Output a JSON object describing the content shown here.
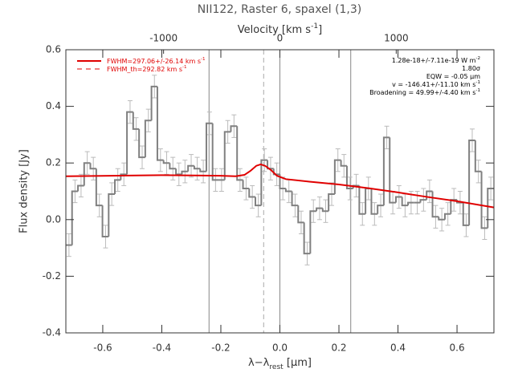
{
  "chart_data": {
    "type": "histogram",
    "title": "NII122, Raster 6, spaxel (1,3)",
    "xlabel": {
      "text": "λ−λ",
      "sub": "rest",
      "unit": " [μm]"
    },
    "ylabel": "Flux density [Jy]",
    "x2label": {
      "text": "Velocity [km s",
      "sup": "-1",
      "end": "]"
    },
    "xlim": [
      -0.725,
      0.725
    ],
    "xticks": [
      -0.6,
      -0.4,
      -0.2,
      {
        "value": 0,
        "label": "0.0"
      },
      0.2,
      0.4,
      0.6
    ],
    "ylim": [
      -0.4,
      0.6
    ],
    "yticks": [
      -0.4,
      -0.2,
      {
        "value": 0,
        "label": "0.0"
      },
      0.2,
      0.4,
      0.6
    ],
    "x2lim": [
      -1840,
      1840
    ],
    "x2ticks": [
      -1000,
      0,
      1000
    ],
    "bins": [
      -0.725,
      -0.704,
      -0.684,
      -0.663,
      -0.642,
      -0.622,
      -0.601,
      -0.58,
      -0.559,
      -0.539,
      -0.518,
      -0.497,
      -0.477,
      -0.456,
      -0.435,
      -0.415,
      -0.394,
      -0.373,
      -0.352,
      -0.332,
      -0.311,
      -0.29,
      -0.27,
      -0.249,
      -0.228,
      -0.208,
      -0.187,
      -0.166,
      -0.145,
      -0.125,
      -0.104,
      -0.083,
      -0.063,
      -0.042,
      -0.021,
      0.0,
      0.02,
      0.041,
      0.062,
      0.082,
      0.103,
      0.124,
      0.145,
      0.165,
      0.186,
      0.207,
      0.227,
      0.248,
      0.269,
      0.29,
      0.31,
      0.331,
      0.352,
      0.372,
      0.393,
      0.414,
      0.434,
      0.455,
      0.476,
      0.497,
      0.517,
      0.538,
      0.559,
      0.579,
      0.6,
      0.621,
      0.641,
      0.662,
      0.683,
      0.704,
      0.725
    ],
    "values": [
      -0.09,
      0.1,
      0.12,
      0.2,
      0.18,
      0.05,
      -0.06,
      0.09,
      0.14,
      0.16,
      0.38,
      0.32,
      0.22,
      0.35,
      0.47,
      0.21,
      0.2,
      0.18,
      0.16,
      0.17,
      0.19,
      0.18,
      0.17,
      0.34,
      0.14,
      0.14,
      0.31,
      0.33,
      0.14,
      0.11,
      0.08,
      0.05,
      0.21,
      0.18,
      0.16,
      0.11,
      0.1,
      0.05,
      -0.01,
      -0.12,
      0.03,
      0.04,
      0.03,
      0.09,
      0.21,
      0.19,
      0.11,
      0.12,
      0.02,
      0.11,
      0.02,
      0.05,
      0.29,
      0.06,
      0.08,
      0.05,
      0.06,
      0.06,
      0.07,
      0.1,
      0.01,
      0.0,
      0.02,
      0.07,
      0.06,
      -0.02,
      0.28,
      0.17,
      -0.03,
      0.11
    ],
    "error": 0.04,
    "color": "#808080",
    "error_color": "#bbbbbb",
    "fit": {
      "color": "#e00000",
      "peak_color": "#ff5a00",
      "x": [
        -0.725,
        -0.4,
        -0.2,
        -0.15,
        -0.12,
        -0.1,
        -0.08,
        -0.065,
        -0.05,
        -0.03,
        -0.01,
        0.02,
        0.1,
        0.2,
        0.3,
        0.4,
        0.5,
        0.6,
        0.725
      ],
      "values": [
        0.153,
        0.157,
        0.155,
        0.153,
        0.158,
        0.172,
        0.19,
        0.195,
        0.19,
        0.175,
        0.155,
        0.143,
        0.134,
        0.124,
        0.111,
        0.096,
        0.08,
        0.065,
        0.043
      ]
    },
    "vlines": [
      -0.24,
      0,
      0.24
    ],
    "dashed_line": -0.055,
    "legend": [
      {
        "text": "FWHM=297.06+/-26.14 km s",
        "sup": "-1",
        "style": "solid"
      },
      {
        "text": "FWHM_th=292.82 km s",
        "sup": "-1",
        "style": "dashed"
      }
    ],
    "annotations": [
      {
        "text": "1.28e-18+/-7.11e-19 W m",
        "sup": "-2"
      },
      {
        "text": "1.80σ"
      },
      {
        "text": "EQW = -0.05 μm"
      },
      {
        "text": "v = -146.41+/-11.10 km s",
        "sup": "-1"
      },
      {
        "text": "Broadening = 49.99+/-4.40 km s",
        "sup": "-1"
      }
    ]
  }
}
